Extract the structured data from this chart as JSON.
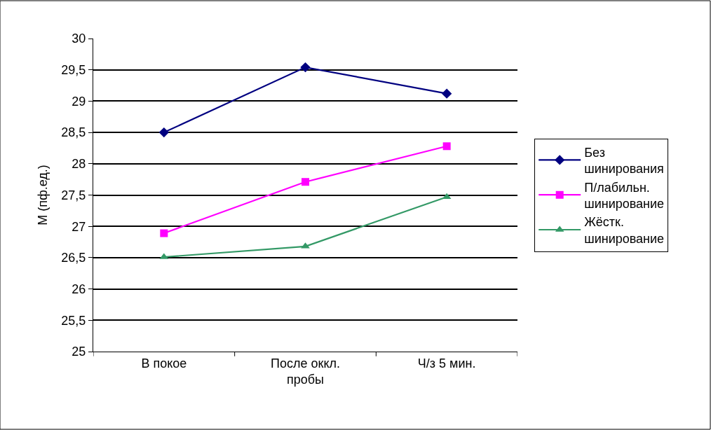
{
  "chart_data": {
    "type": "line",
    "ylabel": "М (пф.ед.)",
    "categories": [
      "В покое",
      "После оккл. пробы",
      "Ч/з 5 мин."
    ],
    "series": [
      {
        "name": "Без шинирования",
        "color": "#000080",
        "marker": "diamond",
        "values": [
          28.5,
          29.54,
          29.12
        ]
      },
      {
        "name": "П/лабильн. шинирование",
        "color": "#ff00ff",
        "marker": "square",
        "values": [
          26.89,
          27.71,
          28.28
        ]
      },
      {
        "name": "Жёстк. шинирование",
        "color": "#339966",
        "marker": "triangle",
        "values": [
          26.51,
          26.68,
          27.47
        ]
      }
    ],
    "ylim": [
      25,
      30
    ],
    "yticks": [
      25,
      {
        "value": 25.5,
        "label": "25,5"
      },
      26,
      {
        "value": 26.5,
        "label": "26,5"
      },
      27,
      {
        "value": 27.5,
        "label": "27,5"
      },
      28,
      {
        "value": 28.5,
        "label": "28,5"
      },
      29,
      {
        "value": 29.5,
        "label": "29,5"
      },
      30
    ],
    "grid": "y",
    "legend": "right",
    "line_style": "solid"
  }
}
